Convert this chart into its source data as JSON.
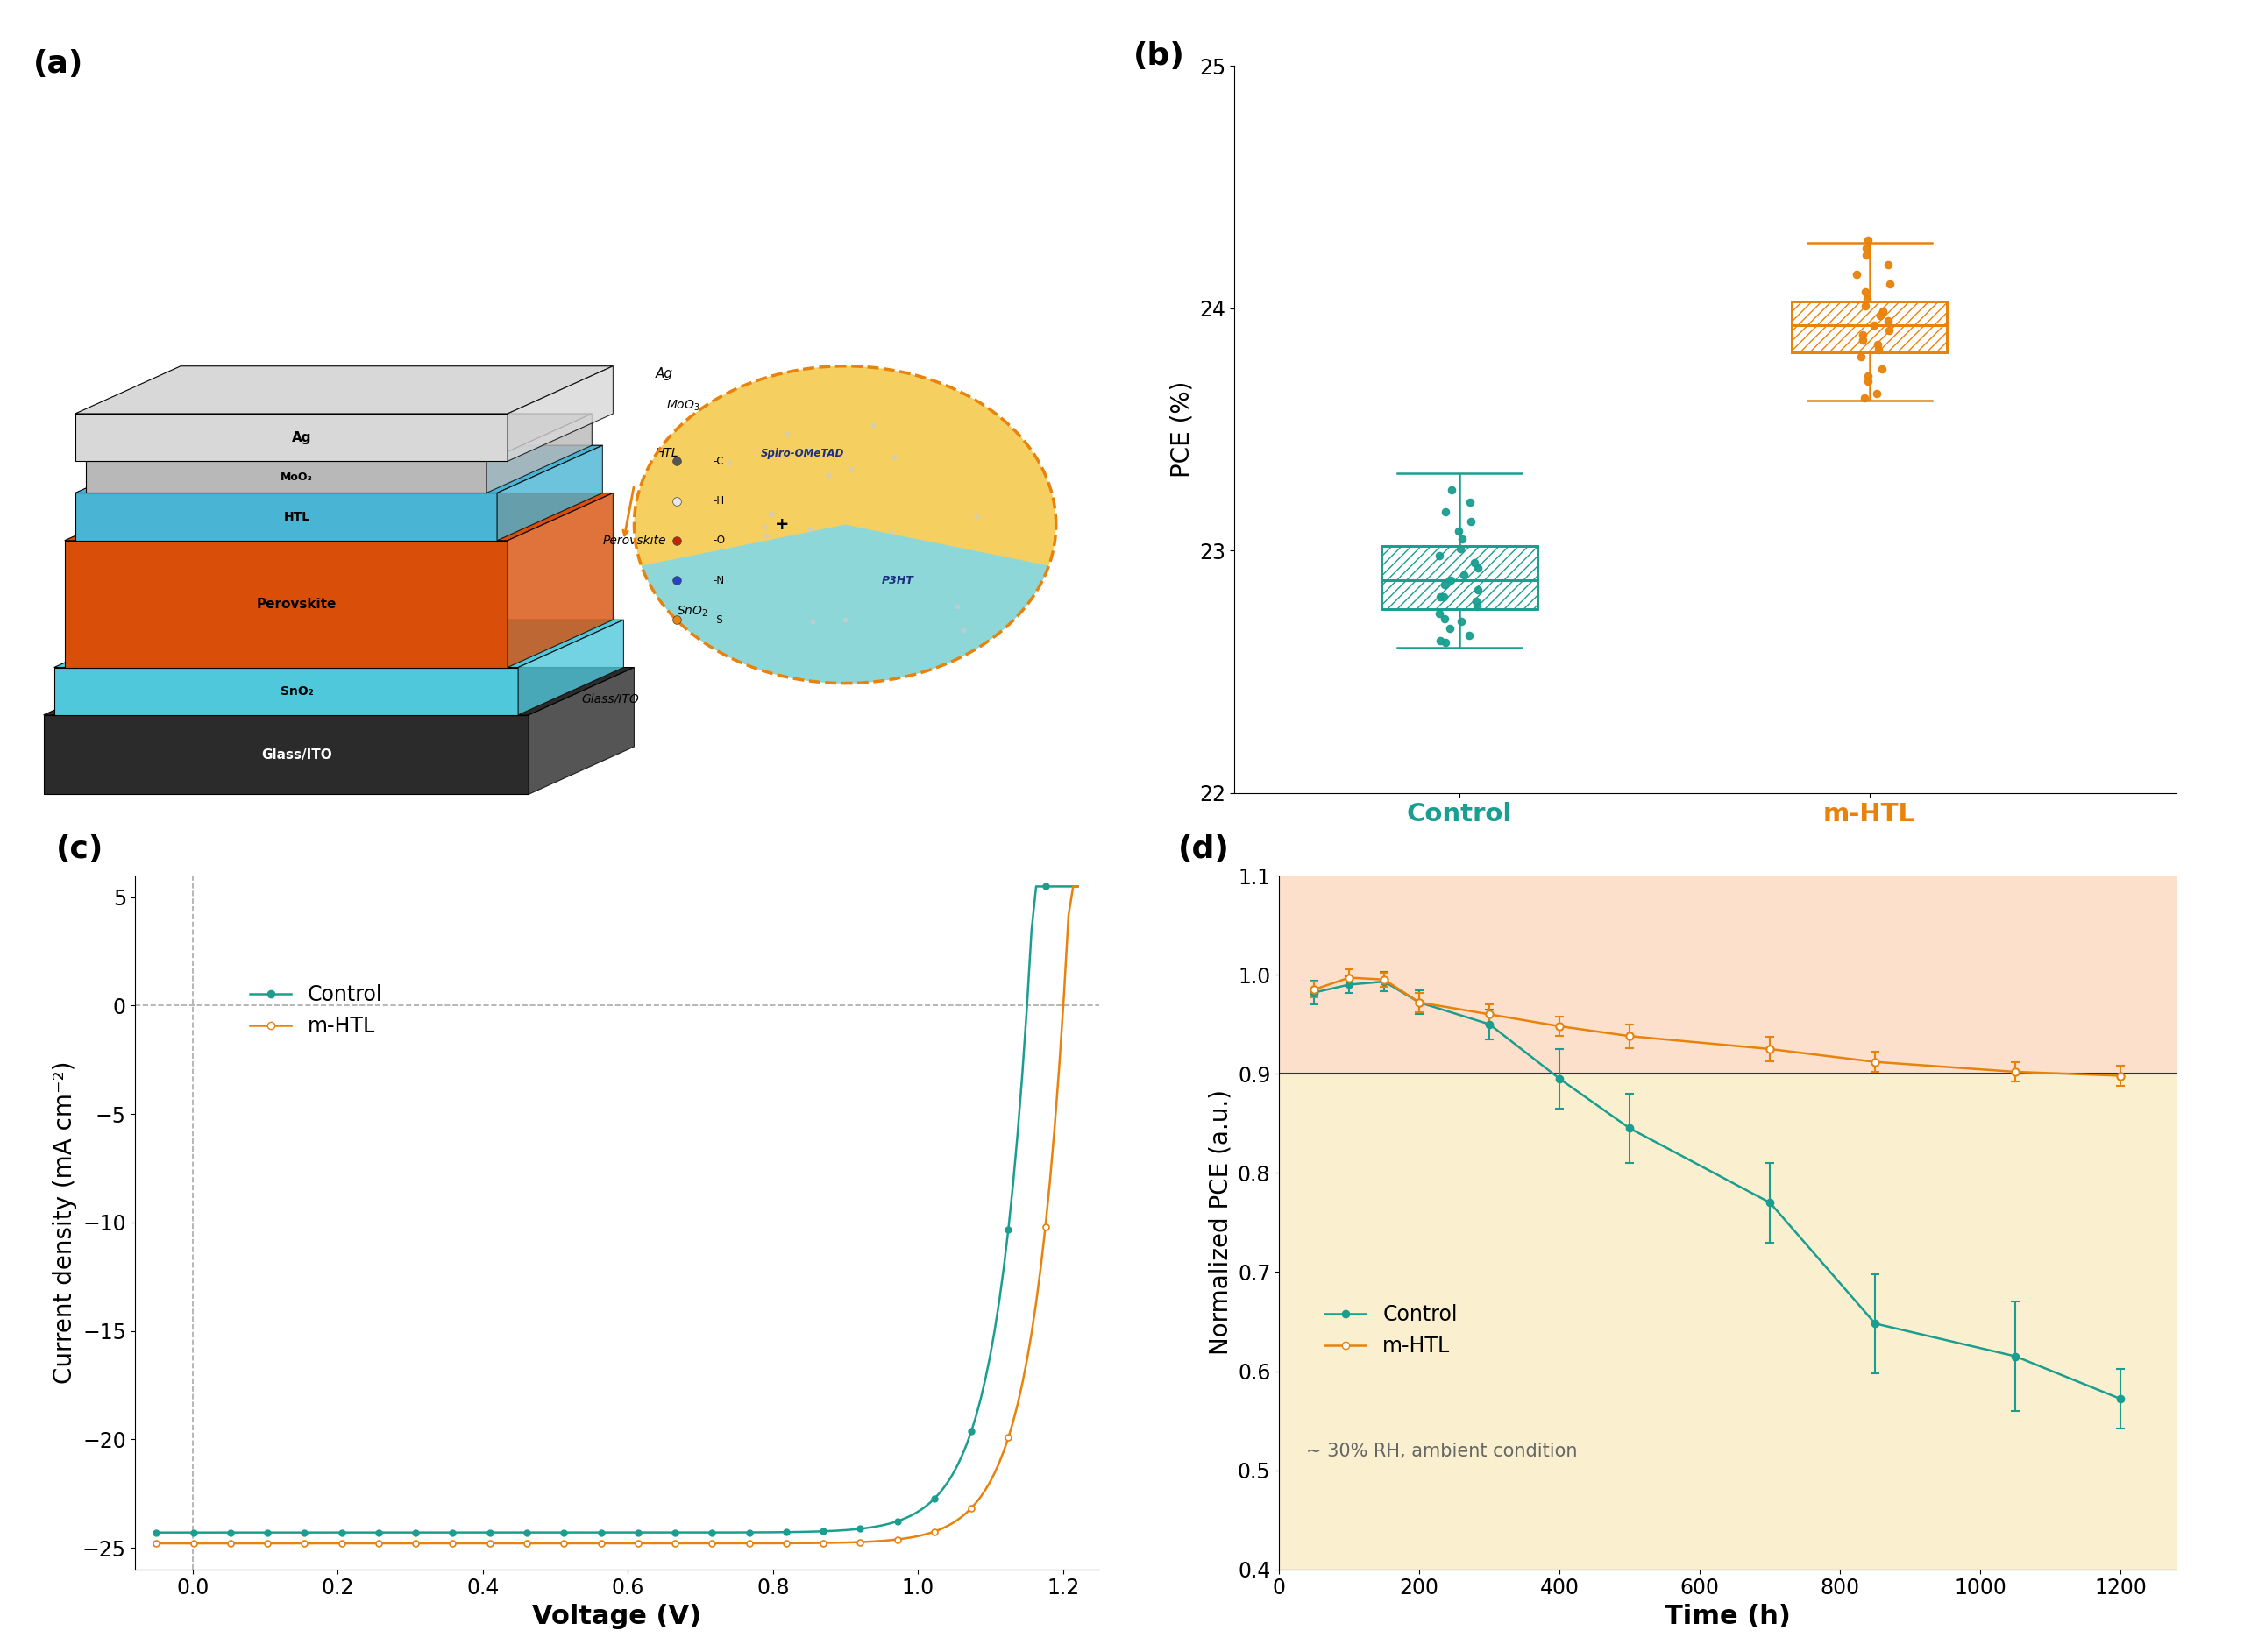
{
  "panel_b": {
    "ylabel": "PCE (%)",
    "ylim": [
      22,
      25
    ],
    "yticks": [
      22,
      23,
      24,
      25
    ],
    "control_color": "#1a9e8f",
    "mhtl_color": "#e8820a",
    "control_label": "Control",
    "mhtl_label": "m-HTL",
    "control_box": {
      "q1": 22.76,
      "median": 22.88,
      "q3": 23.02,
      "whisker_lo": 22.6,
      "whisker_hi": 23.32
    },
    "mhtl_box": {
      "q1": 23.82,
      "median": 23.93,
      "q3": 24.03,
      "whisker_lo": 23.62,
      "whisker_hi": 24.27
    },
    "control_points": [
      22.62,
      22.65,
      22.68,
      22.71,
      22.74,
      22.77,
      22.79,
      22.81,
      22.84,
      22.86,
      22.88,
      22.9,
      22.93,
      22.95,
      22.98,
      23.01,
      23.05,
      23.08,
      23.12,
      23.16,
      23.2,
      22.63,
      22.72,
      22.81,
      23.25
    ],
    "mhtl_points": [
      23.65,
      23.7,
      23.75,
      23.8,
      23.83,
      23.85,
      23.87,
      23.89,
      23.91,
      23.93,
      23.95,
      23.97,
      23.99,
      24.01,
      24.04,
      24.07,
      24.1,
      24.14,
      24.18,
      24.22,
      24.25,
      24.28,
      23.63,
      23.72
    ]
  },
  "panel_c": {
    "xlabel": "Voltage (V)",
    "ylabel": "Current density (mA cm⁻²)",
    "xlim": [
      -0.08,
      1.25
    ],
    "ylim": [
      -26,
      6
    ],
    "yticks": [
      5,
      0,
      -5,
      -10,
      -15,
      -20,
      -25
    ],
    "xticks": [
      0.0,
      0.2,
      0.4,
      0.6,
      0.8,
      1.0,
      1.2
    ],
    "control_color": "#1a9e8f",
    "mhtl_color": "#e8820a",
    "control_label": "Control",
    "mhtl_label": "m-HTL",
    "control_Jsc": 24.3,
    "control_Voc": 1.15,
    "mhtl_Jsc": 24.8,
    "mhtl_Voc": 1.2
  },
  "panel_d": {
    "xlabel": "Time (h)",
    "ylabel": "Normalized PCE (a.u.)",
    "xlim": [
      0,
      1280
    ],
    "ylim": [
      0.4,
      1.1
    ],
    "yticks": [
      0.4,
      0.5,
      0.6,
      0.7,
      0.8,
      0.9,
      1.0,
      1.1
    ],
    "xticks": [
      0,
      200,
      400,
      600,
      800,
      1000,
      1200
    ],
    "control_color": "#1a9e8f",
    "mhtl_color": "#e8820a",
    "control_label": "Control",
    "mhtl_label": "m-HTL",
    "annotation": "~ 30% RH, ambient condition",
    "threshold_line": 0.9,
    "bg_above_color": "#fce0cc",
    "bg_below_color": "#faf0d0",
    "control_x": [
      50,
      100,
      150,
      200,
      300,
      400,
      500,
      700,
      850,
      1050,
      1200
    ],
    "control_y": [
      0.982,
      0.99,
      0.993,
      0.972,
      0.95,
      0.895,
      0.845,
      0.77,
      0.648,
      0.615,
      0.572
    ],
    "control_err": [
      0.012,
      0.008,
      0.01,
      0.012,
      0.015,
      0.03,
      0.035,
      0.04,
      0.05,
      0.055,
      0.03
    ],
    "mhtl_x": [
      50,
      100,
      150,
      200,
      300,
      400,
      500,
      700,
      850,
      1050,
      1200
    ],
    "mhtl_y": [
      0.985,
      0.997,
      0.995,
      0.972,
      0.96,
      0.948,
      0.938,
      0.925,
      0.912,
      0.902,
      0.898
    ],
    "mhtl_err": [
      0.008,
      0.008,
      0.007,
      0.01,
      0.01,
      0.01,
      0.012,
      0.012,
      0.01,
      0.01,
      0.01
    ]
  },
  "teal_color": "#1a9e8f",
  "orange_color": "#e8820a",
  "label_fontsize": 20,
  "tick_fontsize": 17,
  "legend_fontsize": 17,
  "panel_label_fontsize": 26
}
